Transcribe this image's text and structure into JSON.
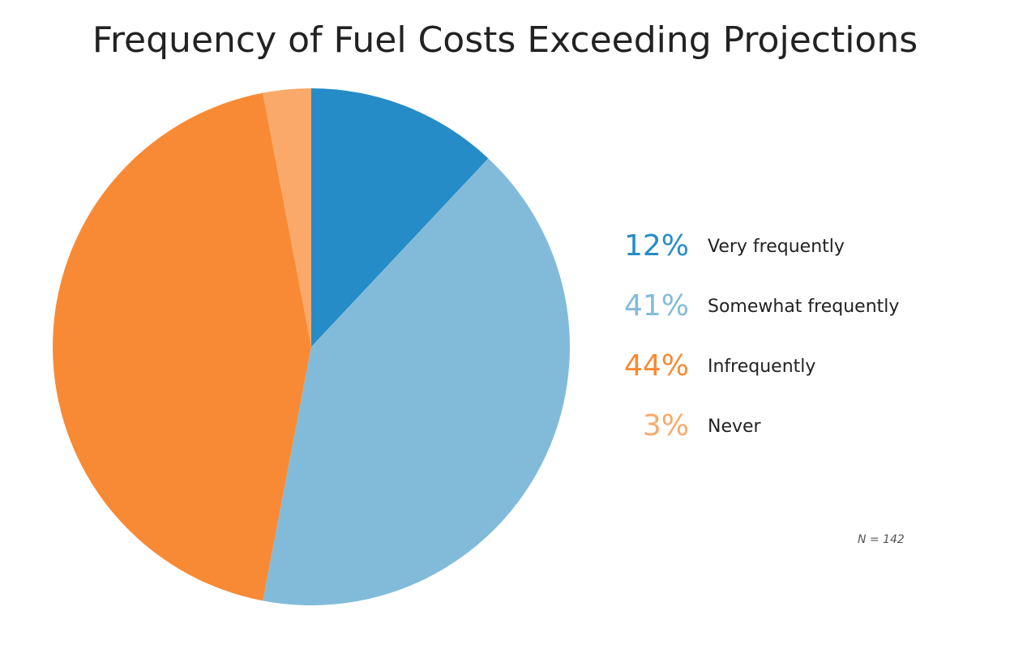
{
  "chart_data": {
    "type": "pie",
    "title": "Frequency of Fuel Costs Exceeding Projections",
    "slices": [
      {
        "label": "Very frequently",
        "value": 12,
        "pct_text": "12%",
        "color": "#258cc7"
      },
      {
        "label": "Somewhat frequently",
        "value": 41,
        "pct_text": "41%",
        "color": "#82bbd9"
      },
      {
        "label": "Infrequently",
        "value": 44,
        "pct_text": "44%",
        "color": "#f98a35"
      },
      {
        "label": "Never",
        "value": 3,
        "pct_text": "3%",
        "color": "#fba96a"
      }
    ],
    "start_angle": "12 o'clock",
    "direction": "clockwise",
    "legend_position": "right",
    "note": "N = 142"
  }
}
